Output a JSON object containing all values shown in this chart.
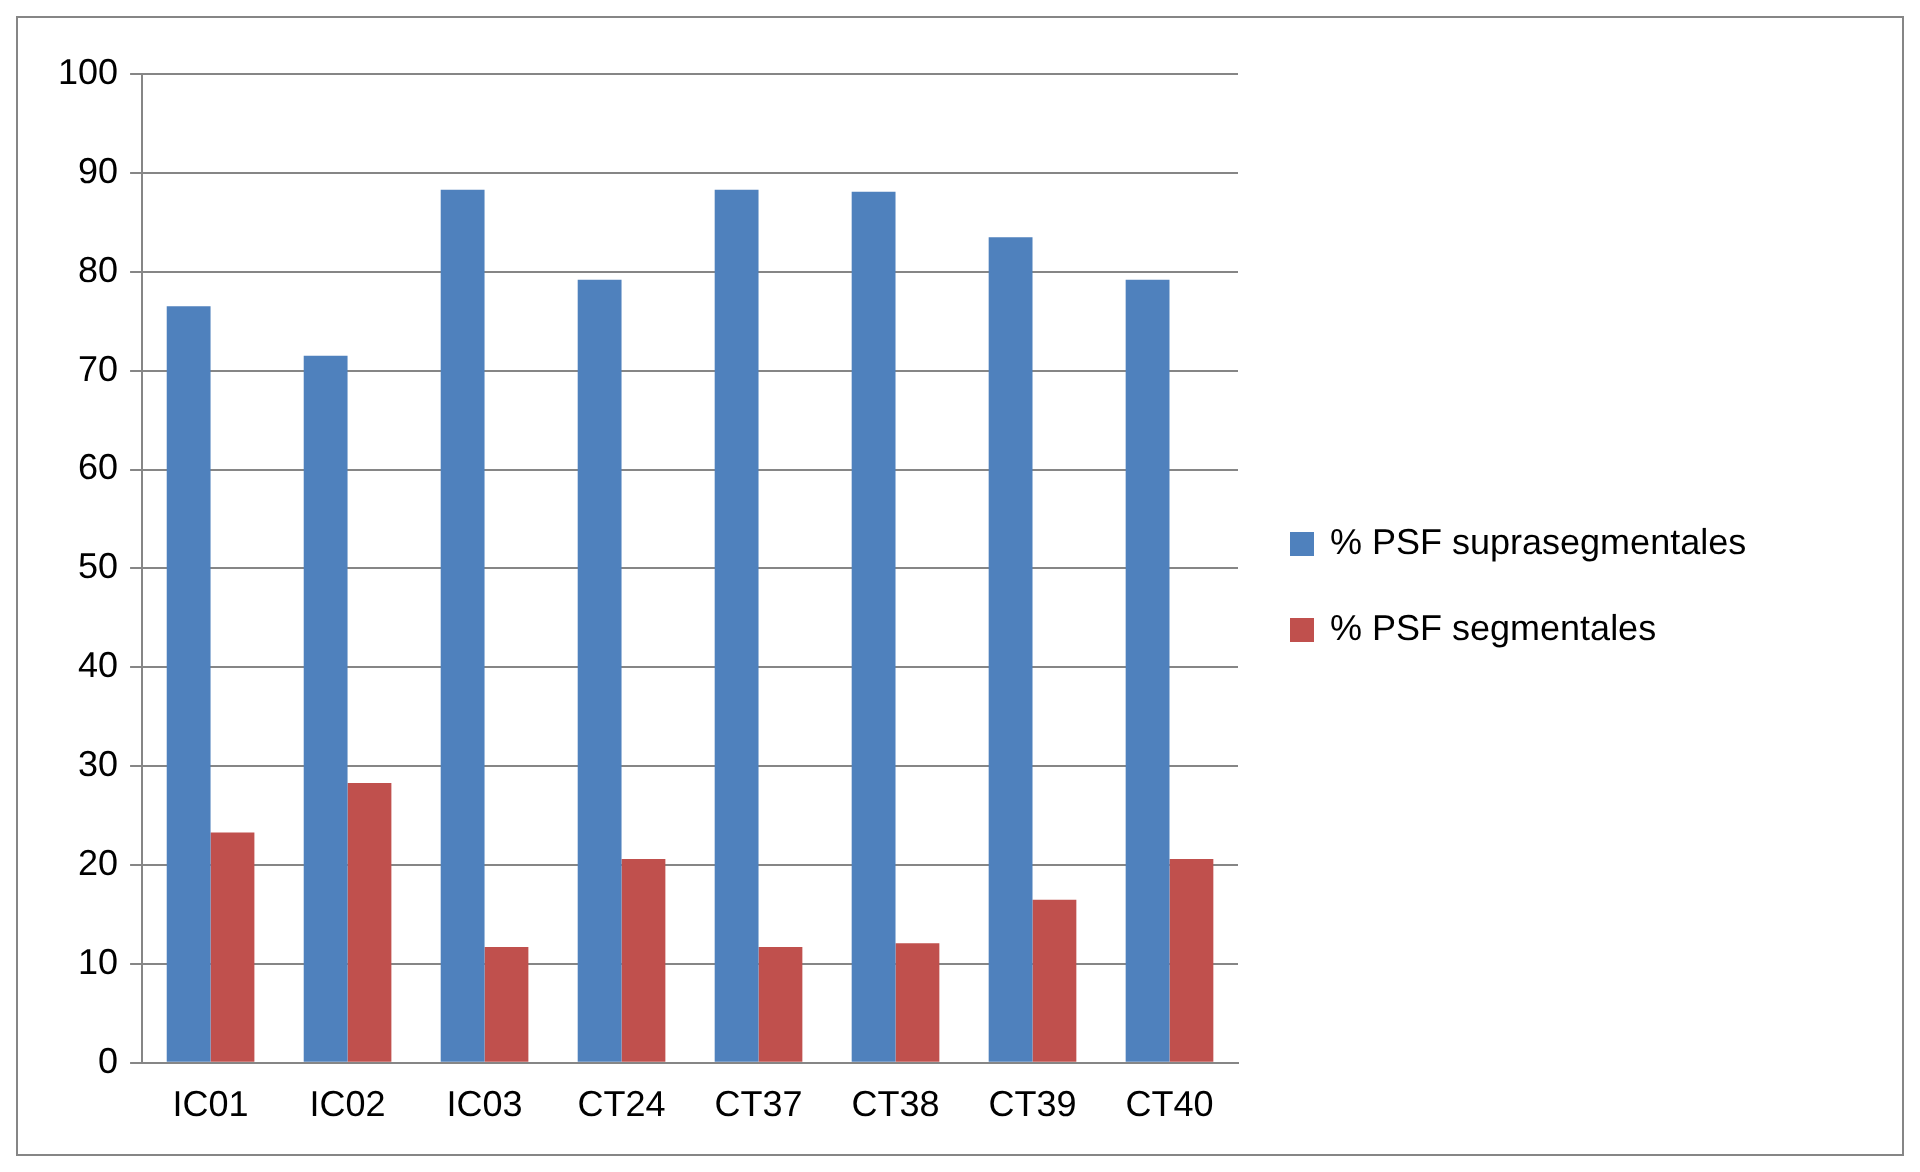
{
  "chart_data": {
    "type": "bar",
    "categories": [
      "IC01",
      "IC02",
      "IC03",
      "CT24",
      "CT37",
      "CT38",
      "CT39",
      "CT40"
    ],
    "series": [
      {
        "name": "% PSF suprasegmentales",
        "color": "#4f81bd",
        "values": [
          76.5,
          71.5,
          88.3,
          79.2,
          88.3,
          88.1,
          83.5,
          79.2
        ]
      },
      {
        "name": "% PSF segmentales",
        "color": "#c0504d",
        "values": [
          23.3,
          28.3,
          11.7,
          20.6,
          11.7,
          12.1,
          16.5,
          20.6
        ]
      }
    ],
    "ylim": [
      0,
      100
    ],
    "yticks": [
      0,
      10,
      20,
      30,
      40,
      50,
      60,
      70,
      80,
      90,
      100
    ],
    "grid": "y",
    "legend": "right"
  }
}
